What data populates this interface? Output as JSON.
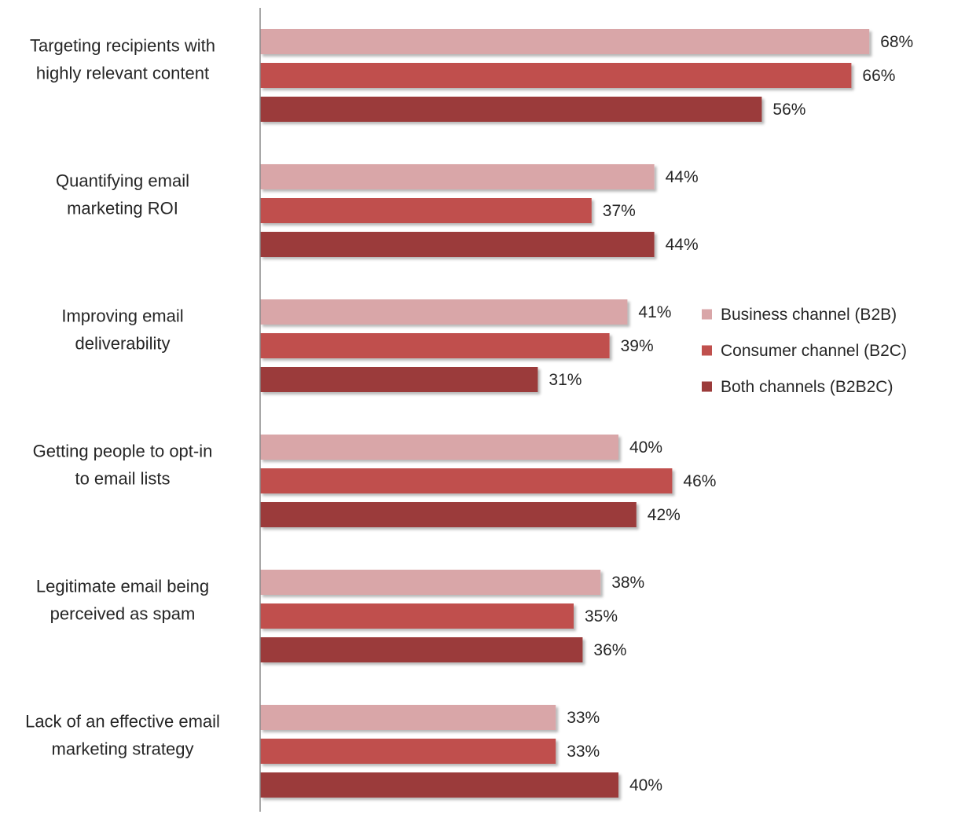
{
  "chart_data": {
    "type": "bar",
    "orientation": "horizontal",
    "categories": [
      [
        "Targeting recipients with",
        "highly relevant content"
      ],
      [
        "Quantifying email",
        "marketing ROI"
      ],
      [
        "Improving email",
        "deliverability"
      ],
      [
        "Getting people to opt-in",
        "to email lists"
      ],
      [
        "Legitimate email being",
        "perceived as spam"
      ],
      [
        "Lack of an effective email",
        "marketing strategy"
      ]
    ],
    "series": [
      {
        "name": "Business channel (B2B)",
        "color": "#d9a6a8",
        "values": [
          68,
          44,
          41,
          40,
          38,
          33
        ]
      },
      {
        "name": "Consumer channel (B2C)",
        "color": "#c0504d",
        "values": [
          66,
          37,
          39,
          46,
          35,
          33
        ]
      },
      {
        "name": "Both channels (B2B2C)",
        "color": "#9b3b3a",
        "values": [
          56,
          44,
          31,
          42,
          36,
          40
        ]
      }
    ],
    "value_suffix": "%",
    "xlim": [
      0,
      100
    ],
    "grid": false,
    "legend_position": "right"
  }
}
